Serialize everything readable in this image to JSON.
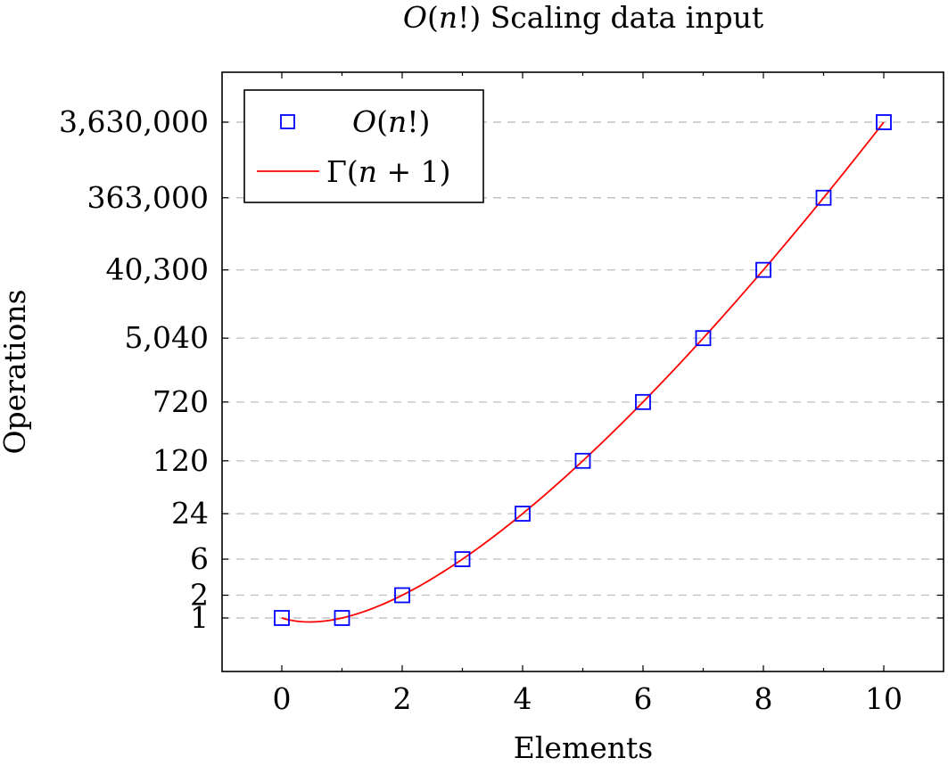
{
  "chart_data": {
    "type": "scatter",
    "title": {
      "italic": "O",
      "rest1": "(",
      "var": "n",
      "rest2": "!) Scaling data input"
    },
    "xlabel": "Elements",
    "ylabel": "Operations",
    "xlim": [
      -1,
      11
    ],
    "x_ticks": [
      0,
      2,
      4,
      6,
      8,
      10
    ],
    "x_tick_labels": [
      "0",
      "2",
      "4",
      "6",
      "8",
      "10"
    ],
    "y_scale": "log",
    "y_ticks": [
      1,
      2,
      6,
      24,
      120,
      720,
      5040,
      40300,
      363000,
      3630000
    ],
    "y_tick_labels": [
      "1",
      "2",
      "6",
      "24",
      "120",
      "720",
      "5,040",
      "40,300",
      "363,000",
      "3,630,000"
    ],
    "grid": "horizontal dashed",
    "legend_position": "top-left",
    "series": [
      {
        "name": "O(n!)",
        "kind": "markers",
        "marker": "square",
        "color": "#0000ff",
        "x": [
          0,
          1,
          2,
          3,
          4,
          5,
          6,
          7,
          8,
          9,
          10
        ],
        "y": [
          1,
          1,
          2,
          6,
          24,
          120,
          720,
          5040,
          40320,
          362880,
          3628800
        ]
      },
      {
        "name": "Γ(n + 1)",
        "kind": "line",
        "color": "#ff0000",
        "function": "gamma(n+1)",
        "x_range": [
          0,
          10
        ]
      }
    ],
    "legend": [
      {
        "label_italic": "O",
        "label_rest1": "(",
        "label_var": "n",
        "label_rest2": "!)"
      },
      {
        "label_pre": "Γ(",
        "label_var": "n",
        "label_rest": " + 1)"
      }
    ]
  }
}
